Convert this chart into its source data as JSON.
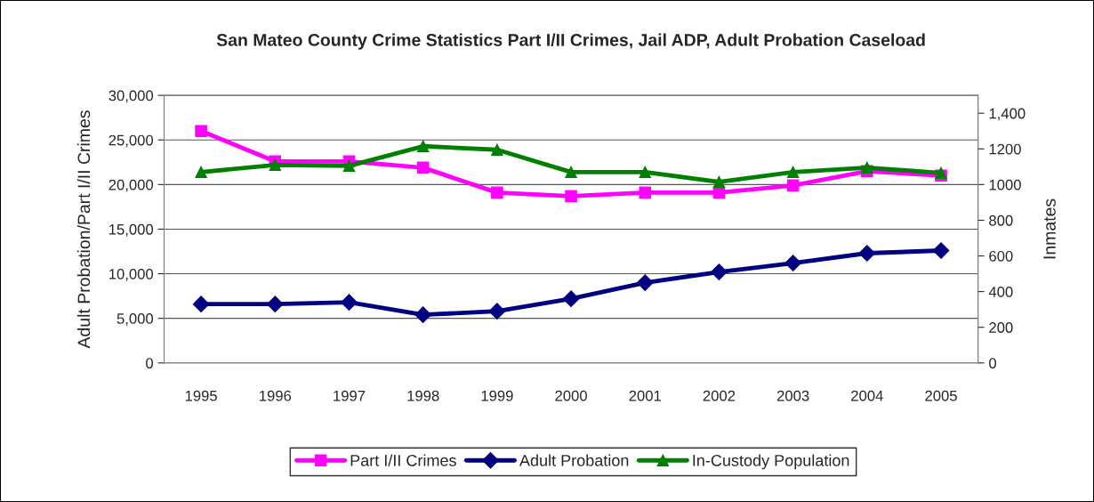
{
  "chart_data": {
    "type": "line",
    "title": "San Mateo County Crime Statistics Part I/II Crimes, Jail ADP, Adult Probation Caseload",
    "ylabel": "Adult Probation/Part I/II Crimes",
    "y2label": "Inmates",
    "categories": [
      "1995",
      "1996",
      "1997",
      "1998",
      "1999",
      "2000",
      "2001",
      "2002",
      "2003",
      "2004",
      "2005"
    ],
    "series": [
      {
        "name": "Part I/II Crimes",
        "color": "#ff00ff",
        "marker": "square",
        "values": [
          26000,
          22600,
          22600,
          21900,
          19100,
          18700,
          19100,
          19100,
          19900,
          21500,
          21000
        ]
      },
      {
        "name": "Adult Probation",
        "color": "#000080",
        "marker": "diamond",
        "values": [
          6600,
          6600,
          6800,
          5400,
          5800,
          7200,
          9000,
          10200,
          11200,
          12300,
          12600
        ]
      },
      {
        "name": "In-Custody Population",
        "color": "#008000",
        "marker": "triangle",
        "axis": "y2",
        "values": [
          1070,
          1110,
          1105,
          1215,
          1195,
          1070,
          1070,
          1015,
          1070,
          1095,
          1065
        ]
      }
    ],
    "ylim": [
      0,
      30000
    ],
    "yticks": [
      {
        "value": 0,
        "label": "0"
      },
      {
        "value": 5000,
        "label": "5,000"
      },
      {
        "value": 10000,
        "label": "10,000"
      },
      {
        "value": 15000,
        "label": "15,000"
      },
      {
        "value": 20000,
        "label": "20,000"
      },
      {
        "value": 25000,
        "label": "25,000"
      },
      {
        "value": 30000,
        "label": "30,000"
      }
    ],
    "y2lim": [
      0,
      1500
    ],
    "y2ticks": [
      0,
      200,
      400,
      600,
      800,
      1000,
      1200,
      {
        "value": 1400,
        "label": "1,400"
      }
    ],
    "grid": "y",
    "legend": "bottom"
  }
}
